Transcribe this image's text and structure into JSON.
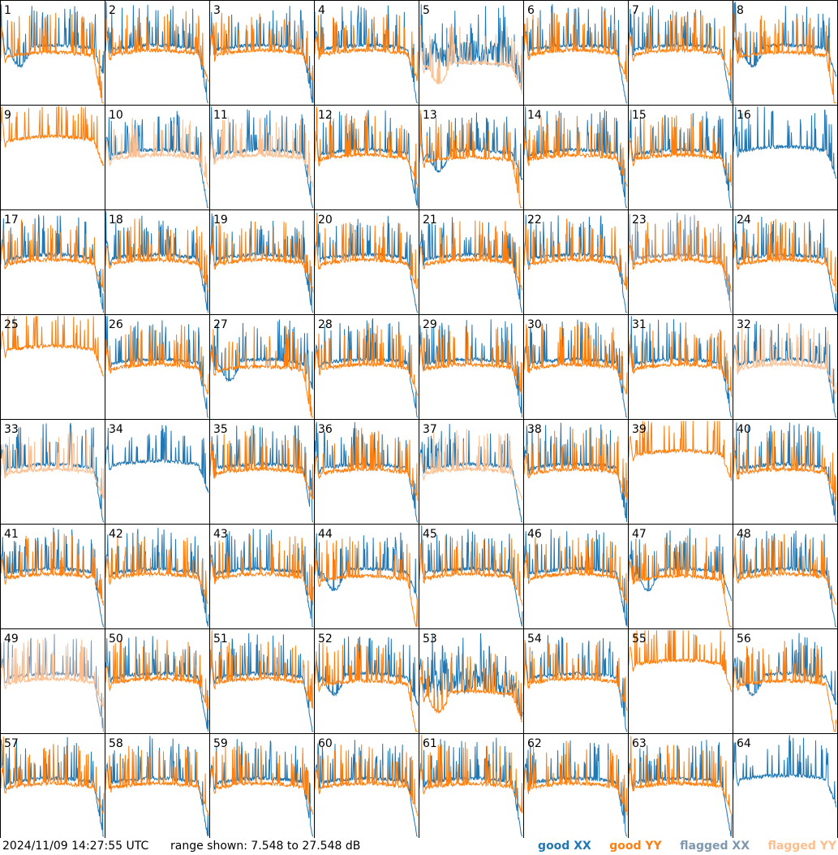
{
  "chart_data": {
    "type": "line",
    "layout": "small-multiples grid, 8 columns x 8 rows",
    "panels": [
      {
        "label": "1",
        "profile": "irregular"
      },
      {
        "label": "2",
        "profile": "typical"
      },
      {
        "label": "3",
        "profile": "typical"
      },
      {
        "label": "4",
        "profile": "typical"
      },
      {
        "label": "5",
        "profile": "xx-noisy",
        "yy_flagged": true
      },
      {
        "label": "6",
        "profile": "typical"
      },
      {
        "label": "7",
        "profile": "typical"
      },
      {
        "label": "8",
        "profile": "irregular"
      },
      {
        "label": "9",
        "profile": "yy-only-high"
      },
      {
        "label": "10",
        "profile": "typical",
        "yy_flagged": true
      },
      {
        "label": "11",
        "profile": "typical",
        "yy_flagged": true
      },
      {
        "label": "12",
        "profile": "typical"
      },
      {
        "label": "13",
        "profile": "irregular"
      },
      {
        "label": "14",
        "profile": "typical"
      },
      {
        "label": "15",
        "profile": "typical"
      },
      {
        "label": "16",
        "profile": "xx-only",
        "yy_flagged": true
      },
      {
        "label": "17",
        "profile": "typical"
      },
      {
        "label": "18",
        "profile": "typical"
      },
      {
        "label": "19",
        "profile": "typical"
      },
      {
        "label": "20",
        "profile": "typical"
      },
      {
        "label": "21",
        "profile": "typical"
      },
      {
        "label": "22",
        "profile": "typical"
      },
      {
        "label": "23",
        "profile": "typical",
        "xx_flagged": true
      },
      {
        "label": "24",
        "profile": "typical"
      },
      {
        "label": "25",
        "profile": "yy-only-high"
      },
      {
        "label": "26",
        "profile": "typical"
      },
      {
        "label": "27",
        "profile": "irregular"
      },
      {
        "label": "28",
        "profile": "typical"
      },
      {
        "label": "29",
        "profile": "typical"
      },
      {
        "label": "30",
        "profile": "typical"
      },
      {
        "label": "31",
        "profile": "typical"
      },
      {
        "label": "32",
        "profile": "typical",
        "yy_flagged": true
      },
      {
        "label": "33",
        "profile": "typical",
        "yy_flagged": true
      },
      {
        "label": "34",
        "profile": "xx-only",
        "yy_flagged": true
      },
      {
        "label": "35",
        "profile": "typical"
      },
      {
        "label": "36",
        "profile": "typical"
      },
      {
        "label": "37",
        "profile": "typical",
        "yy_flagged": true
      },
      {
        "label": "38",
        "profile": "typical"
      },
      {
        "label": "39",
        "profile": "yy-only-high"
      },
      {
        "label": "40",
        "profile": "typical"
      },
      {
        "label": "41",
        "profile": "typical"
      },
      {
        "label": "42",
        "profile": "typical"
      },
      {
        "label": "43",
        "profile": "typical"
      },
      {
        "label": "44",
        "profile": "irregular"
      },
      {
        "label": "45",
        "profile": "typical"
      },
      {
        "label": "46",
        "profile": "typical"
      },
      {
        "label": "47",
        "profile": "irregular"
      },
      {
        "label": "48",
        "profile": "typical"
      },
      {
        "label": "49",
        "profile": "typical",
        "xx_flagged": true,
        "yy_flagged": true
      },
      {
        "label": "50",
        "profile": "typical"
      },
      {
        "label": "51",
        "profile": "typical"
      },
      {
        "label": "52",
        "profile": "irregular"
      },
      {
        "label": "53",
        "profile": "xx-noisy"
      },
      {
        "label": "54",
        "profile": "typical"
      },
      {
        "label": "55",
        "profile": "yy-only-high"
      },
      {
        "label": "56",
        "profile": "irregular"
      },
      {
        "label": "57",
        "profile": "typical"
      },
      {
        "label": "58",
        "profile": "typical"
      },
      {
        "label": "59",
        "profile": "typical"
      },
      {
        "label": "60",
        "profile": "typical"
      },
      {
        "label": "61",
        "profile": "typical"
      },
      {
        "label": "62",
        "profile": "typical"
      },
      {
        "label": "63",
        "profile": "typical"
      },
      {
        "label": "64",
        "profile": "xx-only",
        "yy_flagged": true
      }
    ],
    "range_db": [
      7.548,
      27.548
    ],
    "grid": true,
    "legend_position": "bottom-right",
    "legend": [
      {
        "label": "good XX",
        "color": "#1f77b4"
      },
      {
        "label": "good YY",
        "color": "#ff7f0e"
      },
      {
        "label": "flagged XX",
        "color": "#7f98b0"
      },
      {
        "label": "flagged YY",
        "color": "#fdbf8f"
      }
    ]
  },
  "footer": {
    "timestamp": "2024/11/09 14:27:55 UTC",
    "range_text": "range shown: 7.548 to 27.548 dB"
  }
}
